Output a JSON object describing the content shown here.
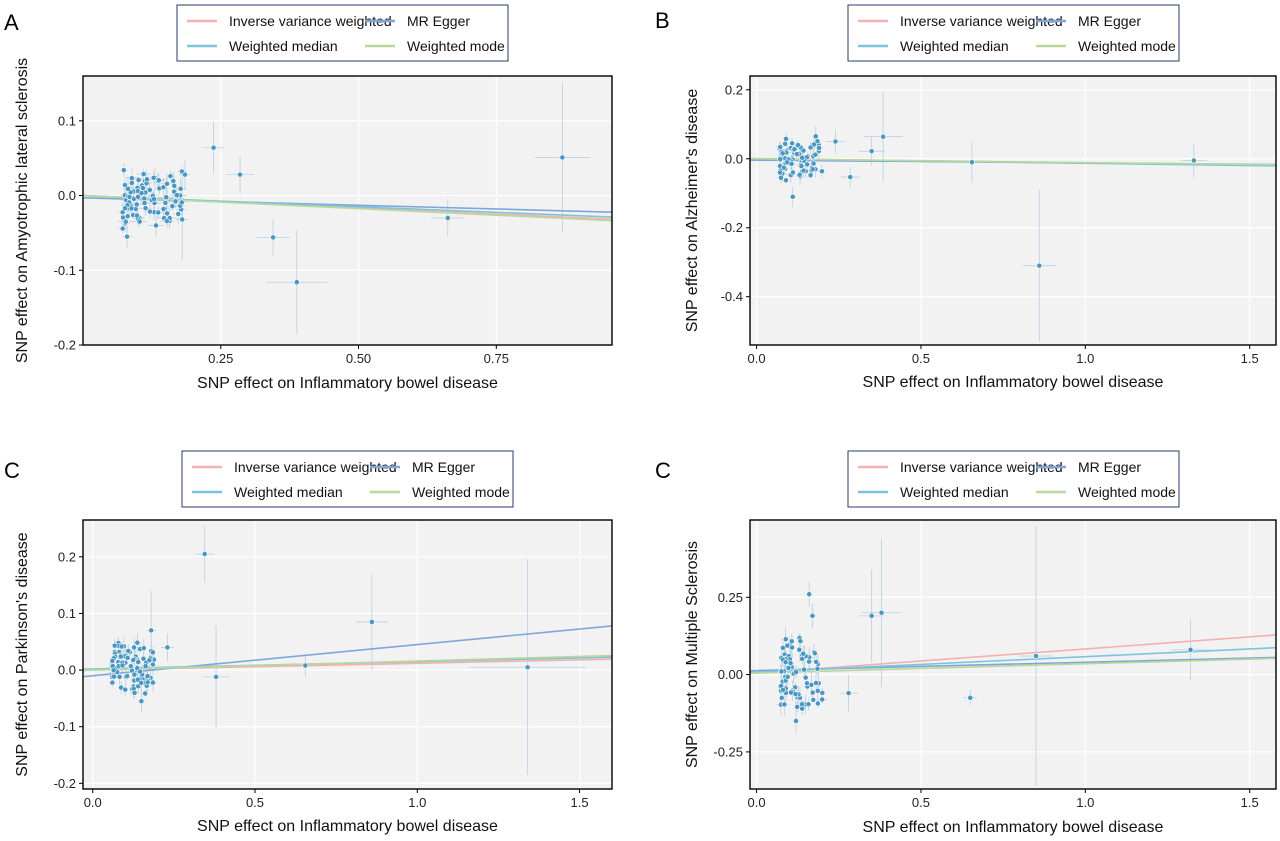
{
  "legend": {
    "ivw": "Inverse variance weighted",
    "egger": "MR Egger",
    "wmed": "Weighted median",
    "wmode": "Weighted mode"
  },
  "colors": {
    "ivw": "#f4b0ae",
    "egger": "#7ea6d8",
    "wmed": "#7cc4dc",
    "wmode": "#b9d89a",
    "point": "#4a97c4",
    "panel_bg": "#f2f2f2",
    "grid": "#ffffff"
  },
  "chart_data": [
    {
      "type": "scatter",
      "panel_label": "A",
      "xlabel": "SNP effect on Inflammatory bowel disease",
      "ylabel": "SNP effect on Amyotrophic lateral sclerosis",
      "xlim": [
        0.0,
        0.96
      ],
      "ylim": [
        -0.2,
        0.16
      ],
      "xticks": [
        0.25,
        0.5,
        0.75
      ],
      "xtick_labels": [
        "0.25",
        "0.50",
        "0.75"
      ],
      "yticks": [
        -0.2,
        -0.1,
        0.0,
        0.1
      ],
      "ytick_labels": [
        "-0.2",
        "-0.1",
        "0.0",
        "0.1"
      ],
      "grid": true,
      "lines": [
        {
          "method": "ivw",
          "slope": -0.033,
          "intercept": 0.0
        },
        {
          "method": "egger",
          "slope": -0.02,
          "intercept": -0.003
        },
        {
          "method": "wmed",
          "slope": -0.03,
          "intercept": 0.0
        },
        {
          "method": "wmode",
          "slope": -0.035,
          "intercept": 0.0
        }
      ],
      "points": [
        {
          "x": 0.237,
          "y": 0.064,
          "xerr": 0.02,
          "yerr": 0.035
        },
        {
          "x": 0.285,
          "y": 0.028,
          "xerr": 0.025,
          "yerr": 0.025
        },
        {
          "x": 0.185,
          "y": 0.028,
          "xerr": 0.01,
          "yerr": 0.02
        },
        {
          "x": 0.345,
          "y": -0.056,
          "xerr": 0.03,
          "yerr": 0.025
        },
        {
          "x": 0.388,
          "y": -0.116,
          "xerr": 0.055,
          "yerr": 0.07
        },
        {
          "x": 0.662,
          "y": -0.03,
          "xerr": 0.03,
          "yerr": 0.025
        },
        {
          "x": 0.87,
          "y": 0.051,
          "xerr": 0.05,
          "yerr": 0.1
        },
        {
          "x": 0.08,
          "y": -0.055,
          "xerr": 0.008,
          "yerr": 0.015
        },
        {
          "x": 0.18,
          "y": -0.032,
          "xerr": 0.01,
          "yerr": 0.055
        }
      ],
      "cluster": {
        "x_range": [
          0.07,
          0.18
        ],
        "y_range": [
          -0.045,
          0.038
        ],
        "n": 95,
        "seed": 11
      }
    },
    {
      "type": "scatter",
      "panel_label": "B",
      "xlabel": "SNP effect on Inflammatory bowel disease",
      "ylabel": "SNP effect on Alzheimer's disease",
      "xlim": [
        -0.02,
        1.58
      ],
      "ylim": [
        -0.54,
        0.24
      ],
      "xticks": [
        0.0,
        0.5,
        1.0,
        1.5
      ],
      "xtick_labels": [
        "0.0",
        "0.5",
        "1.0",
        "1.5"
      ],
      "yticks": [
        -0.4,
        -0.2,
        0.0,
        0.2
      ],
      "ytick_labels": [
        "-0.4",
        "-0.2",
        "0.0",
        "0.2"
      ],
      "grid": true,
      "lines": [
        {
          "method": "ivw",
          "slope": -0.012,
          "intercept": 0.0
        },
        {
          "method": "egger",
          "slope": -0.008,
          "intercept": -0.004
        },
        {
          "method": "wmed",
          "slope": -0.013,
          "intercept": 0.0
        },
        {
          "method": "wmode",
          "slope": -0.011,
          "intercept": 0.0
        }
      ],
      "points": [
        {
          "x": 0.385,
          "y": 0.064,
          "xerr": 0.06,
          "yerr": 0.13
        },
        {
          "x": 0.24,
          "y": 0.05,
          "xerr": 0.03,
          "yerr": 0.035
        },
        {
          "x": 0.35,
          "y": 0.022,
          "xerr": 0.04,
          "yerr": 0.04
        },
        {
          "x": 0.285,
          "y": -0.053,
          "xerr": 0.03,
          "yerr": 0.03
        },
        {
          "x": 0.655,
          "y": -0.01,
          "xerr": 0.03,
          "yerr": 0.06
        },
        {
          "x": 0.86,
          "y": -0.31,
          "xerr": 0.05,
          "yerr": 0.22
        },
        {
          "x": 1.33,
          "y": -0.005,
          "xerr": 0.04,
          "yerr": 0.05
        },
        {
          "x": 0.11,
          "y": -0.11,
          "xerr": 0.01,
          "yerr": 0.03
        },
        {
          "x": 0.18,
          "y": 0.065,
          "xerr": 0.01,
          "yerr": 0.03
        }
      ],
      "cluster": {
        "x_range": [
          0.07,
          0.2
        ],
        "y_range": [
          -0.065,
          0.07
        ],
        "n": 85,
        "seed": 23
      }
    },
    {
      "type": "scatter",
      "panel_label": "C",
      "xlabel": "SNP effect on Inflammatory bowel disease",
      "ylabel": "SNP effect on Parkinson's disease",
      "xlim": [
        -0.03,
        1.6
      ],
      "ylim": [
        -0.21,
        0.265
      ],
      "xticks": [
        0.0,
        0.5,
        1.0,
        1.5
      ],
      "xtick_labels": [
        "0.0",
        "0.5",
        "1.0",
        "1.5"
      ],
      "yticks": [
        -0.2,
        -0.1,
        0.0,
        0.1,
        0.2
      ],
      "ytick_labels": [
        "-0.2",
        "-0.1",
        "0.0",
        "0.1",
        "0.2"
      ],
      "grid": true,
      "lines": [
        {
          "method": "ivw",
          "slope": 0.012,
          "intercept": 0.0
        },
        {
          "method": "egger",
          "slope": 0.055,
          "intercept": -0.01
        },
        {
          "method": "wmed",
          "slope": 0.013,
          "intercept": 0.002
        },
        {
          "method": "wmode",
          "slope": 0.016,
          "intercept": 0.0
        }
      ],
      "points": [
        {
          "x": 0.345,
          "y": 0.205,
          "xerr": 0.03,
          "yerr": 0.05
        },
        {
          "x": 0.38,
          "y": -0.012,
          "xerr": 0.04,
          "yerr": 0.09
        },
        {
          "x": 0.655,
          "y": 0.008,
          "xerr": 0.02,
          "yerr": 0.02
        },
        {
          "x": 0.86,
          "y": 0.085,
          "xerr": 0.05,
          "yerr": 0.085
        },
        {
          "x": 1.34,
          "y": 0.005,
          "xerr": 0.18,
          "yerr": 0.19
        },
        {
          "x": 0.23,
          "y": 0.04,
          "xerr": 0.02,
          "yerr": 0.025
        },
        {
          "x": 0.18,
          "y": 0.07,
          "xerr": 0.015,
          "yerr": 0.07
        },
        {
          "x": 0.15,
          "y": -0.055,
          "xerr": 0.01,
          "yerr": 0.02
        }
      ],
      "cluster": {
        "x_range": [
          0.06,
          0.19
        ],
        "y_range": [
          -0.045,
          0.055
        ],
        "n": 95,
        "seed": 37
      }
    },
    {
      "type": "scatter",
      "panel_label": "C",
      "xlabel": "SNP effect on Inflammatory bowel disease",
      "ylabel": "SNP effect on Multiple Sclerosis",
      "xlim": [
        -0.02,
        1.58
      ],
      "ylim": [
        -0.37,
        0.5
      ],
      "xticks": [
        0.0,
        0.5,
        1.0,
        1.5
      ],
      "xtick_labels": [
        "0.0",
        "0.5",
        "1.0",
        "1.5"
      ],
      "yticks": [
        -0.25,
        0.0,
        0.25
      ],
      "ytick_labels": [
        "-0.25",
        "0.00",
        "0.25"
      ],
      "grid": true,
      "lines": [
        {
          "method": "ivw",
          "slope": 0.078,
          "intercept": 0.005
        },
        {
          "method": "egger",
          "slope": 0.027,
          "intercept": 0.013
        },
        {
          "method": "wmed",
          "slope": 0.05,
          "intercept": 0.008
        },
        {
          "method": "wmode",
          "slope": 0.03,
          "intercept": 0.005
        }
      ],
      "points": [
        {
          "x": 0.16,
          "y": 0.26,
          "xerr": 0.01,
          "yerr": 0.04
        },
        {
          "x": 0.17,
          "y": 0.19,
          "xerr": 0.01,
          "yerr": 0.04
        },
        {
          "x": 0.35,
          "y": 0.19,
          "xerr": 0.04,
          "yerr": 0.15
        },
        {
          "x": 0.38,
          "y": 0.2,
          "xerr": 0.06,
          "yerr": 0.24
        },
        {
          "x": 0.28,
          "y": -0.06,
          "xerr": 0.03,
          "yerr": 0.06
        },
        {
          "x": 0.65,
          "y": -0.075,
          "xerr": 0.02,
          "yerr": 0.025
        },
        {
          "x": 0.85,
          "y": 0.06,
          "xerr": 0.05,
          "yerr": 0.42
        },
        {
          "x": 1.32,
          "y": 0.08,
          "xerr": 0.06,
          "yerr": 0.1
        },
        {
          "x": 0.12,
          "y": -0.15,
          "xerr": 0.01,
          "yerr": 0.04
        }
      ],
      "cluster": {
        "x_range": [
          0.07,
          0.2
        ],
        "y_range": [
          -0.12,
          0.14
        ],
        "n": 80,
        "seed": 53
      }
    }
  ]
}
